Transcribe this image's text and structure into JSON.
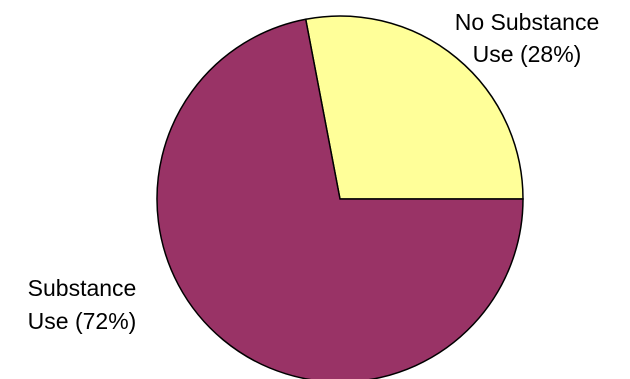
{
  "chart_data": {
    "type": "pie",
    "title": "",
    "slices": [
      {
        "label_lines": [
          "No Substance",
          "Use (28%)"
        ],
        "value": 28,
        "color": "#FFFF99"
      },
      {
        "label_lines": [
          "Substance",
          "Use (72%)"
        ],
        "value": 72,
        "color": "#993366"
      }
    ],
    "outline_color": "#000000",
    "legend": "none"
  }
}
